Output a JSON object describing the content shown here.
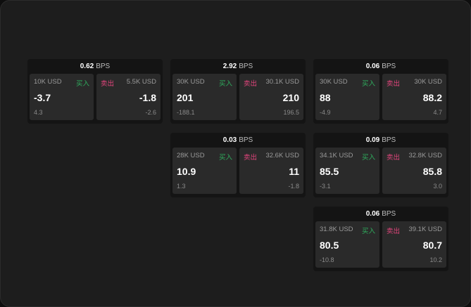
{
  "colors": {
    "buy": "#2fae5e",
    "sell": "#e2457c",
    "background": "#1d1d1d"
  },
  "unit": "BPS",
  "cards": [
    {
      "spread": "0.62",
      "buy": {
        "label": "买入",
        "size": "10K USD",
        "price": "-3.7",
        "change": "4.3"
      },
      "sell": {
        "label": "卖出",
        "size": "5.5K USD",
        "price": "-1.8",
        "change": "-2.6"
      }
    },
    {
      "spread": "2.92",
      "buy": {
        "label": "买入",
        "size": "30K USD",
        "price": "201",
        "change": "-188.1"
      },
      "sell": {
        "label": "卖出",
        "size": "30.1K USD",
        "price": "210",
        "change": "196.5"
      }
    },
    {
      "spread": "0.06",
      "buy": {
        "label": "买入",
        "size": "30K USD",
        "price": "88",
        "change": "-4.9"
      },
      "sell": {
        "label": "卖出",
        "size": "30K USD",
        "price": "88.2",
        "change": "4.7"
      }
    },
    {
      "spread": "0.03",
      "buy": {
        "label": "买入",
        "size": "28K USD",
        "price": "10.9",
        "change": "1.3"
      },
      "sell": {
        "label": "卖出",
        "size": "32.6K USD",
        "price": "11",
        "change": "-1.8"
      }
    },
    {
      "spread": "0.09",
      "buy": {
        "label": "买入",
        "size": "34.1K USD",
        "price": "85.5",
        "change": "-3.1"
      },
      "sell": {
        "label": "卖出",
        "size": "32.8K USD",
        "price": "85.8",
        "change": "3.0"
      }
    },
    {
      "spread": "0.06",
      "buy": {
        "label": "买入",
        "size": "31.8K USD",
        "price": "80.5",
        "change": "-10.8"
      },
      "sell": {
        "label": "卖出",
        "size": "39.1K USD",
        "price": "80.7",
        "change": "10.2"
      }
    }
  ]
}
